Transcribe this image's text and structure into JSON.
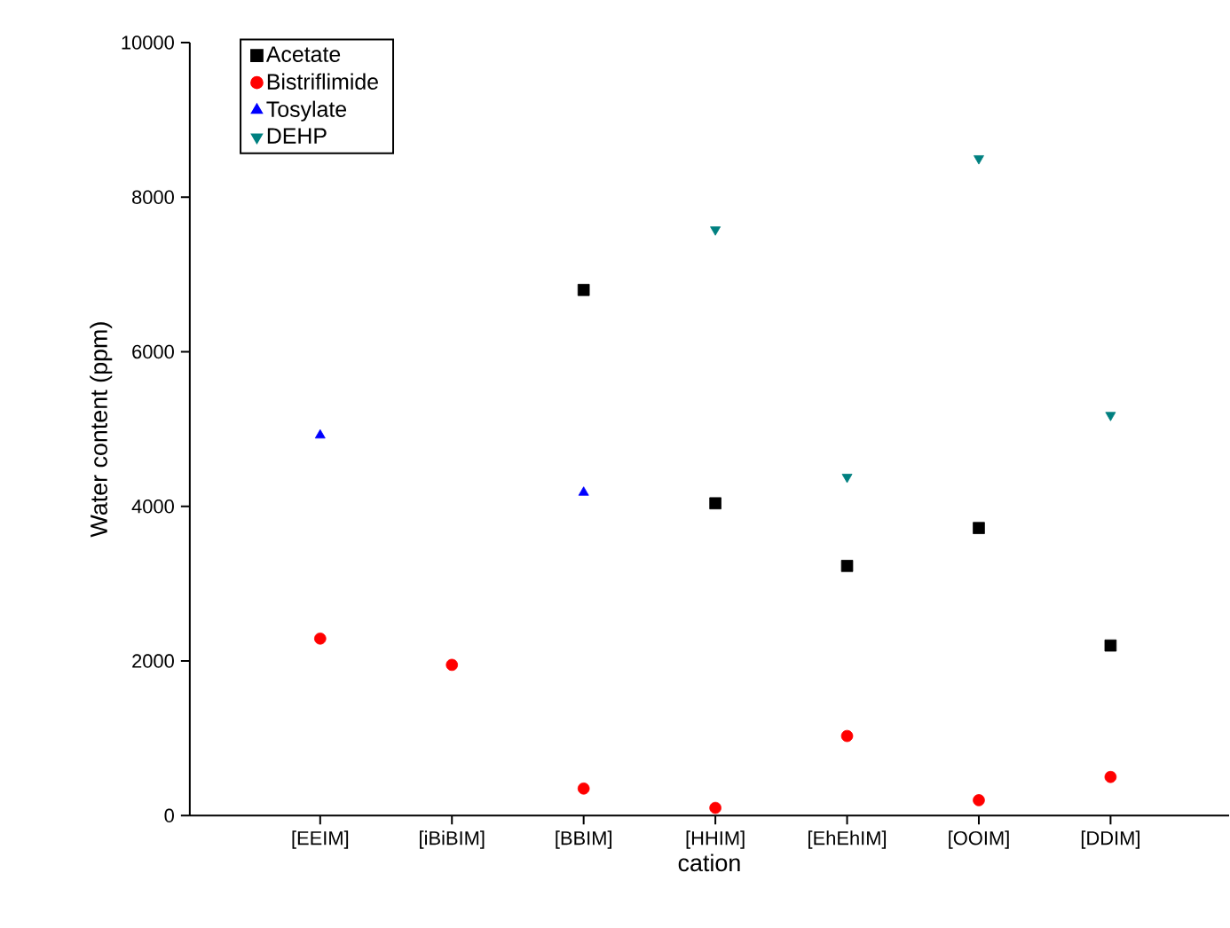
{
  "chart_data": {
    "type": "scatter",
    "xlabel": "cation",
    "ylabel": "Water content (ppm)",
    "categories": [
      "[EEIM]",
      "[iBiBIM]",
      "[BBIM]",
      "[HHIM]",
      "[EhEhIM]",
      "[OOIM]",
      "[DDIM]"
    ],
    "ylim": [
      0,
      10000
    ],
    "yticks": [
      0,
      2000,
      4000,
      6000,
      8000,
      10000
    ],
    "grid": false,
    "legend": "top left",
    "series": [
      {
        "name": "Acetate",
        "color": "#000000",
        "marker": "square",
        "values": [
          null,
          null,
          6800,
          4040,
          3230,
          3720,
          2200
        ]
      },
      {
        "name": "Bistriflimide",
        "color": "#ff0000",
        "marker": "circle",
        "values": [
          2290,
          1950,
          350,
          100,
          1030,
          200,
          500
        ]
      },
      {
        "name": "Tosylate",
        "color": "#0000ff",
        "marker": "triangle",
        "values": [
          4920,
          null,
          4180,
          null,
          null,
          null,
          null
        ]
      },
      {
        "name": "DEHP",
        "color": "#008080",
        "marker": "triangle-down",
        "values": [
          null,
          null,
          null,
          7580,
          4380,
          8500,
          5180
        ]
      }
    ]
  }
}
